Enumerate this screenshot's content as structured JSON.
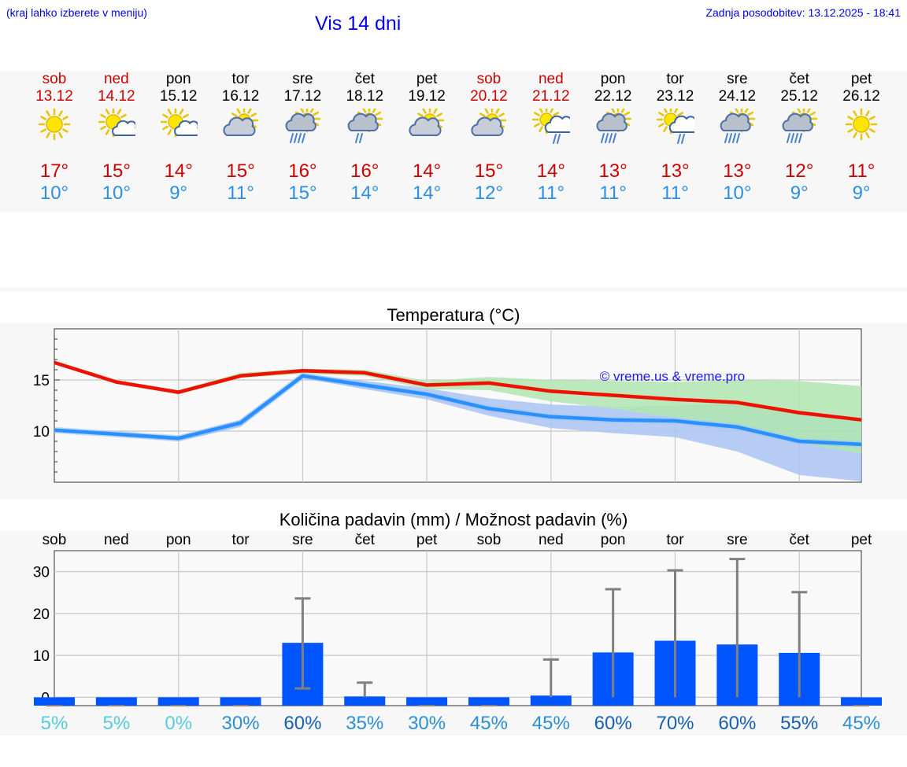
{
  "header": {
    "hint": "(kraj lahko izberete v meniju)",
    "title": "Vis 14 dni",
    "updated": "Zadnja posodobitev: 13.12.2025 - 18:41"
  },
  "days": [
    {
      "name": "sob",
      "date": "13.12",
      "weekend": true,
      "icon": "sun-icon",
      "tmax": "17°",
      "tmin": "10°"
    },
    {
      "name": "ned",
      "date": "14.12",
      "weekend": true,
      "icon": "sun-cloud-icon",
      "tmax": "15°",
      "tmin": "10°"
    },
    {
      "name": "pon",
      "date": "15.12",
      "weekend": false,
      "icon": "sun-cloud-icon",
      "tmax": "14°",
      "tmin": "9°"
    },
    {
      "name": "tor",
      "date": "16.12",
      "weekend": false,
      "icon": "cloud-sun-icon",
      "tmax": "15°",
      "tmin": "11°"
    },
    {
      "name": "sre",
      "date": "17.12",
      "weekend": false,
      "icon": "cloud-rain-icon",
      "tmax": "16°",
      "tmin": "15°"
    },
    {
      "name": "čet",
      "date": "18.12",
      "weekend": false,
      "icon": "cloud-light-rain-icon",
      "tmax": "16°",
      "tmin": "14°"
    },
    {
      "name": "pet",
      "date": "19.12",
      "weekend": false,
      "icon": "cloud-sun-icon",
      "tmax": "14°",
      "tmin": "14°"
    },
    {
      "name": "sob",
      "date": "20.12",
      "weekend": true,
      "icon": "cloud-sun-icon",
      "tmax": "15°",
      "tmin": "12°"
    },
    {
      "name": "ned",
      "date": "21.12",
      "weekend": true,
      "icon": "sun-cloud-rain-icon",
      "tmax": "14°",
      "tmin": "11°"
    },
    {
      "name": "pon",
      "date": "22.12",
      "weekend": false,
      "icon": "cloud-rain-icon",
      "tmax": "13°",
      "tmin": "11°"
    },
    {
      "name": "tor",
      "date": "23.12",
      "weekend": false,
      "icon": "sun-cloud-rain-icon",
      "tmax": "13°",
      "tmin": "11°"
    },
    {
      "name": "sre",
      "date": "24.12",
      "weekend": false,
      "icon": "cloud-rain-icon",
      "tmax": "13°",
      "tmin": "10°"
    },
    {
      "name": "čet",
      "date": "25.12",
      "weekend": false,
      "icon": "cloud-rain-icon",
      "tmax": "12°",
      "tmin": "9°"
    },
    {
      "name": "pet",
      "date": "26.12",
      "weekend": false,
      "icon": "sun-icon",
      "tmax": "11°",
      "tmin": "9°"
    }
  ],
  "colors": {
    "weekend": "#cc0000",
    "weekday": "#000000",
    "tmax": "#cc0000",
    "tmin": "#2b8fe6",
    "bar": "#0055ff",
    "max_line": "#ee1100",
    "min_line": "#2a8fff",
    "max_band": "#b0e6b0",
    "min_band": "#aac4f5"
  },
  "chart_data": [
    {
      "type": "line",
      "title": "Temperatura (°C)",
      "watermark": "© vreme.us & vreme.pro",
      "yticks": [
        10,
        15
      ],
      "ylim": [
        5,
        20
      ],
      "x": [
        0,
        1,
        2,
        3,
        4,
        5,
        6,
        7,
        8,
        9,
        10,
        11,
        12,
        13
      ],
      "series": [
        {
          "name": "max",
          "values": [
            16.7,
            14.8,
            13.8,
            15.4,
            15.9,
            15.7,
            14.5,
            14.7,
            13.9,
            13.5,
            13.1,
            12.8,
            11.8,
            11.1
          ],
          "band_low": [
            16.7,
            14.8,
            13.6,
            15.2,
            15.6,
            15.4,
            14.1,
            14.0,
            12.9,
            12.2,
            11.3,
            10.6,
            8.8,
            7.8
          ],
          "band_high": [
            16.7,
            15.0,
            14.0,
            15.7,
            16.1,
            16.0,
            14.9,
            15.3,
            15.0,
            14.9,
            14.8,
            15.0,
            14.9,
            14.4
          ]
        },
        {
          "name": "min",
          "values": [
            10.1,
            9.7,
            9.3,
            10.8,
            15.4,
            14.5,
            13.6,
            12.2,
            11.4,
            11.1,
            11.0,
            10.4,
            9.0,
            8.7
          ],
          "band_low": [
            10.0,
            9.5,
            9.0,
            10.4,
            15.2,
            14.1,
            13.1,
            11.5,
            10.3,
            9.8,
            9.4,
            8.0,
            5.7,
            5.1
          ],
          "band_high": [
            10.2,
            9.9,
            9.5,
            11.1,
            15.6,
            14.9,
            14.2,
            13.2,
            12.6,
            12.4,
            12.5,
            12.7,
            11.8,
            11.2
          ]
        }
      ]
    },
    {
      "type": "bar",
      "title": "Količina padavin (mm) / Možnost padavin (%)",
      "categories": [
        "sob",
        "ned",
        "pon",
        "tor",
        "sre",
        "čet",
        "pet",
        "sob",
        "ned",
        "pon",
        "tor",
        "sre",
        "čet",
        "pet"
      ],
      "values": [
        0,
        0,
        0,
        0,
        13,
        0.2,
        0,
        0,
        0.4,
        10.7,
        13.5,
        12.6,
        10.6,
        0
      ],
      "err_low": [
        0,
        0,
        0,
        0,
        2.1,
        0,
        0,
        0,
        0,
        0,
        0,
        0,
        0,
        0
      ],
      "err_high": [
        0,
        0,
        0,
        0,
        23.6,
        3.5,
        0,
        0,
        9.0,
        25.8,
        30.3,
        33.0,
        25.1,
        0
      ],
      "chance": [
        "5%",
        "5%",
        "0%",
        "30%",
        "60%",
        "35%",
        "30%",
        "45%",
        "45%",
        "60%",
        "70%",
        "60%",
        "55%",
        "45%"
      ],
      "chance_colors": [
        "#55ccdd",
        "#55ccdd",
        "#55ccdd",
        "#2b8fd6",
        "#1560b0",
        "#2b8fd6",
        "#2b8fd6",
        "#2b8fd6",
        "#2b8fd6",
        "#1560b0",
        "#1560b0",
        "#1560b0",
        "#1560b0",
        "#2b8fd6"
      ],
      "yticks": [
        0,
        10,
        20,
        30
      ],
      "ylim": [
        -2,
        35
      ]
    }
  ]
}
